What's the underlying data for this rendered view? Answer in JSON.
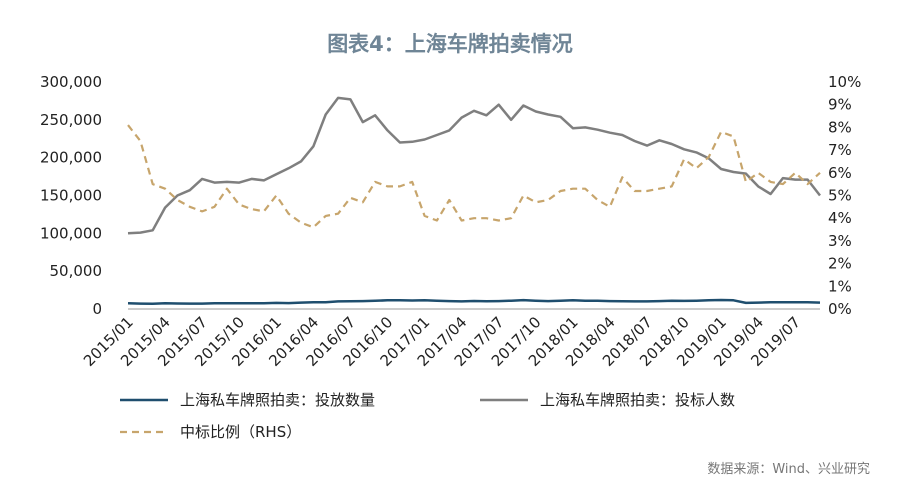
{
  "chart_data": {
    "type": "line",
    "title": "图表4：上海车牌拍卖情况",
    "source": "数据来源：Wind、兴业研究",
    "x": [
      "2015/01",
      "2015/02",
      "2015/03",
      "2015/04",
      "2015/05",
      "2015/06",
      "2015/07",
      "2015/08",
      "2015/09",
      "2015/10",
      "2015/11",
      "2015/12",
      "2016/01",
      "2016/02",
      "2016/03",
      "2016/04",
      "2016/05",
      "2016/06",
      "2016/07",
      "2016/08",
      "2016/09",
      "2016/10",
      "2016/11",
      "2016/12",
      "2017/01",
      "2017/02",
      "2017/03",
      "2017/04",
      "2017/05",
      "2017/06",
      "2017/07",
      "2017/08",
      "2017/09",
      "2017/10",
      "2017/11",
      "2017/12",
      "2018/01",
      "2018/02",
      "2018/03",
      "2018/04",
      "2018/05",
      "2018/06",
      "2018/07",
      "2018/08",
      "2018/09",
      "2018/10",
      "2018/11",
      "2018/12",
      "2019/01",
      "2019/02",
      "2019/03",
      "2019/04",
      "2019/05",
      "2019/06",
      "2019/07",
      "2019/08",
      "2019/09"
    ],
    "xticks": [
      "2015/01",
      "2015/04",
      "2015/07",
      "2015/10",
      "2016/01",
      "2016/04",
      "2016/07",
      "2016/10",
      "2017/01",
      "2017/04",
      "2017/07",
      "2017/10",
      "2018/01",
      "2018/04",
      "2018/07",
      "2018/10",
      "2019/01",
      "2019/04",
      "2019/07"
    ],
    "y_left": {
      "range": [
        0,
        300000
      ],
      "ticks": [
        "0",
        "50,000",
        "100,000",
        "150,000",
        "200,000",
        "250,000",
        "300,000"
      ]
    },
    "y_right": {
      "range": [
        0,
        10
      ],
      "unit": "%",
      "ticks": [
        "0%",
        "1%",
        "2%",
        "3%",
        "4%",
        "5%",
        "6%",
        "7%",
        "8%",
        "9%",
        "10%"
      ]
    },
    "series": [
      {
        "name": "上海私车牌照拍卖：投放数量",
        "axis": "left",
        "color": "#1f4e6e",
        "style": "solid",
        "values": [
          7500,
          7200,
          7000,
          7500,
          7300,
          7200,
          7100,
          7500,
          7600,
          7500,
          7500,
          7600,
          8000,
          7800,
          8500,
          8800,
          9000,
          10000,
          10200,
          10500,
          10800,
          11500,
          11500,
          11200,
          11500,
          11000,
          10500,
          10000,
          10600,
          10200,
          10500,
          11000,
          11800,
          11000,
          10500,
          11000,
          11500,
          11000,
          10800,
          10500,
          10300,
          10000,
          10000,
          10500,
          10800,
          10700,
          11000,
          11500,
          11900,
          11500,
          8000,
          8500,
          8800,
          9000,
          9000,
          8800,
          8500
        ]
      },
      {
        "name": "上海私车牌照拍卖：投标人数",
        "axis": "left",
        "color": "#7f7f7f",
        "style": "solid",
        "values": [
          100000,
          101000,
          104000,
          134000,
          150000,
          157000,
          172000,
          167000,
          168000,
          167000,
          172000,
          170000,
          178000,
          186000,
          195000,
          215000,
          257000,
          279000,
          277000,
          247000,
          256000,
          236000,
          220000,
          221000,
          224000,
          230000,
          236000,
          253000,
          262000,
          256000,
          270000,
          250000,
          269000,
          261000,
          257000,
          254000,
          239000,
          240000,
          237000,
          233000,
          230000,
          222000,
          216000,
          223000,
          218000,
          211000,
          207000,
          199000,
          185000,
          181000,
          179000,
          162000,
          152000,
          173000,
          171000,
          171000,
          150000
        ]
      },
      {
        "name": "中标比例（RHS）",
        "axis": "right",
        "color": "#c7a56c",
        "style": "dashed",
        "values": [
          8.1,
          7.4,
          5.5,
          5.3,
          4.8,
          4.5,
          4.3,
          4.5,
          5.3,
          4.6,
          4.4,
          4.3,
          5.0,
          4.2,
          3.8,
          3.6,
          4.1,
          4.2,
          4.9,
          4.7,
          5.6,
          5.4,
          5.4,
          5.6,
          4.1,
          3.9,
          4.8,
          3.9,
          4.0,
          4.0,
          3.9,
          4.0,
          5.0,
          4.7,
          4.8,
          5.2,
          5.3,
          5.3,
          4.8,
          4.5,
          5.8,
          5.2,
          5.2,
          5.3,
          5.4,
          6.6,
          6.2,
          6.7,
          7.8,
          7.6,
          5.6,
          6.0,
          5.6,
          5.5,
          6.0,
          5.5,
          6.0
        ]
      }
    ],
    "legend": "bottom",
    "grid": false
  }
}
